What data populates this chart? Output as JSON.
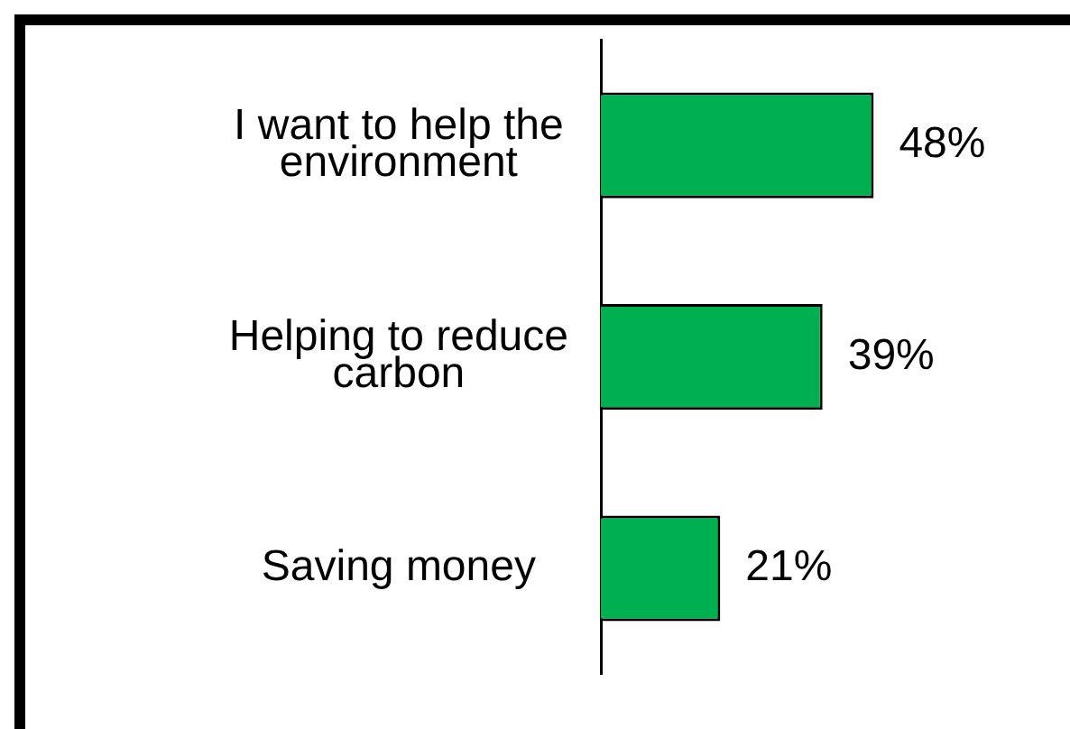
{
  "chart_data": {
    "type": "bar",
    "orientation": "horizontal",
    "categories": [
      "I want to help the environment",
      "Helping to reduce carbon",
      "Saving money"
    ],
    "values": [
      48,
      39,
      21
    ],
    "color": "#00b050",
    "value_labels": [
      "48%",
      "39%",
      "21%"
    ],
    "tick_labels": "y",
    "grid": false,
    "legend": false
  }
}
